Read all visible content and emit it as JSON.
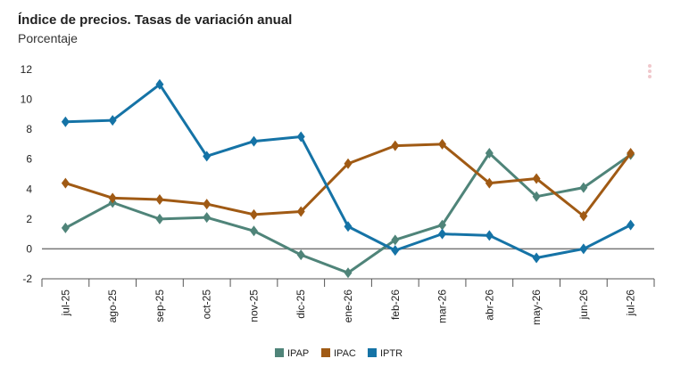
{
  "header": {
    "title": "Índice de precios. Tasas de variación anual",
    "subtitle": "Porcentaje"
  },
  "chart_data": {
    "type": "line",
    "title": "Índice de precios. Tasas de variación anual",
    "ylabel": "Porcentaje",
    "xlabel": "",
    "categories": [
      "jul-25",
      "ago-25",
      "sep-25",
      "oct-25",
      "nov-25",
      "dic-25",
      "ene-26",
      "feb-26",
      "mar-26",
      "abr-26",
      "may-26",
      "jun-26",
      "jul-26"
    ],
    "ylim": [
      -2,
      12
    ],
    "yticks": [
      -2,
      0,
      2,
      4,
      6,
      8,
      10,
      12
    ],
    "grid": false,
    "legend_position": "bottom",
    "series": [
      {
        "name": "IPAP",
        "color": "#4f8479",
        "values": [
          1.4,
          3.1,
          2.0,
          2.1,
          1.2,
          -0.4,
          -1.6,
          0.6,
          1.6,
          6.4,
          3.5,
          4.1,
          6.3
        ]
      },
      {
        "name": "IPAC",
        "color": "#a05a14",
        "values": [
          4.4,
          3.4,
          3.3,
          3.0,
          2.3,
          2.5,
          5.7,
          6.9,
          7.0,
          4.4,
          4.7,
          2.2,
          6.4
        ]
      },
      {
        "name": "IPTR",
        "color": "#1573a6",
        "values": [
          8.5,
          8.6,
          11.0,
          6.2,
          7.2,
          7.5,
          1.5,
          -0.1,
          1.0,
          0.9,
          -0.6,
          0.0,
          1.6
        ]
      }
    ]
  }
}
